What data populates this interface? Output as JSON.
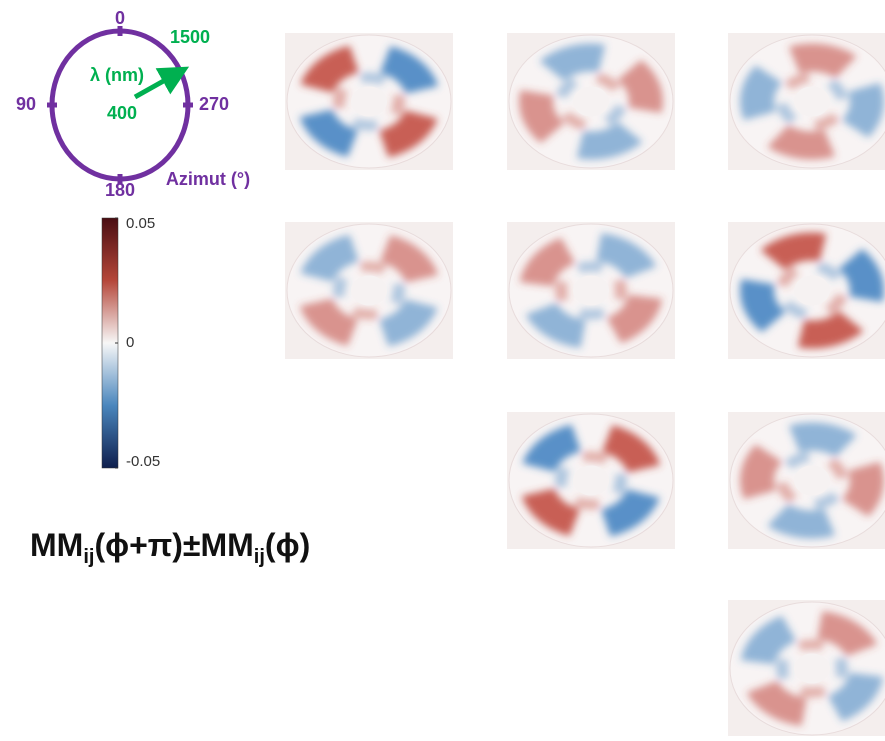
{
  "legend": {
    "azimuth_ticks": [
      0,
      90,
      180,
      270
    ],
    "azimuth_label": "Azimut (°)",
    "wavelength_label": "λ (nm)",
    "wavelength_start": 400,
    "wavelength_end": 1500
  },
  "colorbar": {
    "lim": [
      -0.05,
      0.05
    ],
    "ticks": [
      0.05,
      0,
      -0.05
    ]
  },
  "formula": [
    "MM",
    "ij",
    "(ϕ+π)±MM",
    "ij",
    "(ϕ)"
  ]
}
